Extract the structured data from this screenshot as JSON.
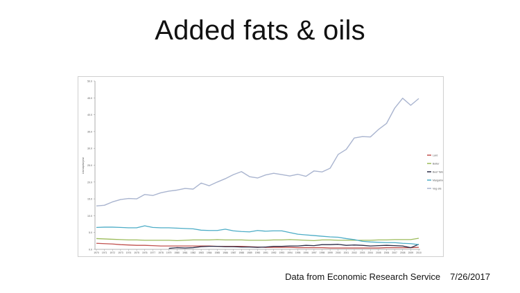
{
  "slide": {
    "title": "Added fats & oils",
    "source_note": "Data from Economic Research Service",
    "date": "7/26/2017"
  },
  "chart_data": {
    "type": "line",
    "title": "",
    "xlabel": "",
    "ylabel": "Lbs/capita/year",
    "ylim": [
      0,
      50
    ],
    "yticks": [
      "0.0",
      "5.0",
      "10.0",
      "15.0",
      "20.0",
      "25.0",
      "30.0",
      "35.0",
      "40.0",
      "45.0",
      "50.0"
    ],
    "x": [
      1970,
      1971,
      1972,
      1973,
      1974,
      1975,
      1976,
      1977,
      1978,
      1979,
      1980,
      1981,
      1982,
      1983,
      1984,
      1985,
      1986,
      1987,
      1988,
      1989,
      1990,
      1991,
      1992,
      1993,
      1994,
      1995,
      1996,
      1997,
      1998,
      1999,
      2000,
      2001,
      2002,
      2003,
      2004,
      2005,
      2006,
      2007,
      2008,
      2009,
      2010
    ],
    "grid": false,
    "legend_position": "right",
    "series": [
      {
        "name": "Lard",
        "color": "#c0504d",
        "values": [
          1.8,
          1.7,
          1.6,
          1.4,
          1.3,
          1.2,
          1.2,
          1.1,
          1.0,
          1.0,
          1.0,
          1.0,
          1.0,
          1.0,
          1.0,
          0.9,
          0.9,
          0.9,
          0.9,
          0.8,
          0.7,
          0.6,
          0.6,
          0.6,
          0.6,
          0.5,
          0.5,
          0.5,
          0.5,
          0.4,
          0.4,
          0.4,
          0.4,
          0.4,
          0.4,
          0.4,
          0.5,
          0.5,
          0.5,
          0.5,
          0.6
        ]
      },
      {
        "name": "Butter",
        "color": "#9bbb59",
        "values": [
          3.2,
          3.1,
          3.0,
          2.9,
          2.8,
          2.8,
          2.7,
          2.7,
          2.7,
          2.7,
          2.6,
          2.7,
          2.8,
          2.8,
          2.8,
          2.9,
          2.8,
          2.8,
          2.8,
          2.7,
          2.7,
          2.7,
          2.8,
          2.8,
          2.9,
          2.8,
          2.7,
          2.6,
          2.8,
          2.8,
          2.7,
          2.7,
          2.7,
          2.7,
          2.7,
          2.8,
          2.8,
          2.9,
          2.9,
          2.9,
          3.3
        ]
      },
      {
        "name": "Beef Tallow",
        "color": "#2b2b45",
        "values": [
          null,
          null,
          null,
          null,
          null,
          null,
          null,
          null,
          null,
          0.3,
          0.5,
          0.4,
          0.5,
          0.8,
          0.9,
          0.9,
          0.8,
          0.8,
          0.7,
          0.7,
          0.6,
          0.7,
          0.9,
          0.9,
          1.0,
          1.0,
          1.2,
          1.1,
          1.4,
          1.4,
          1.5,
          1.2,
          1.3,
          1.2,
          1.0,
          1.1,
          1.2,
          1.1,
          1.0,
          0.5,
          1.5
        ]
      },
      {
        "name": "Margarine",
        "color": "#4bacc6",
        "values": [
          6.5,
          6.6,
          6.6,
          6.5,
          6.4,
          6.4,
          7.0,
          6.5,
          6.4,
          6.4,
          6.3,
          6.2,
          6.1,
          5.7,
          5.6,
          5.6,
          6.0,
          5.5,
          5.3,
          5.2,
          5.6,
          5.4,
          5.5,
          5.5,
          5.0,
          4.5,
          4.3,
          4.1,
          3.9,
          3.7,
          3.6,
          3.2,
          2.9,
          2.4,
          2.2,
          2.1,
          2.0,
          2.0,
          1.8,
          1.7,
          1.4
        ]
      },
      {
        "name": "Veg oils",
        "color": "#a9b4cf",
        "values": [
          12.9,
          13.1,
          14.1,
          14.8,
          15.1,
          15.0,
          16.3,
          16.0,
          16.8,
          17.3,
          17.6,
          18.1,
          17.9,
          19.7,
          18.9,
          20.0,
          21.0,
          22.2,
          23.1,
          21.6,
          21.2,
          22.1,
          22.6,
          22.2,
          21.8,
          22.3,
          21.7,
          23.3,
          23.0,
          24.1,
          28.2,
          29.7,
          33.1,
          33.5,
          33.4,
          35.6,
          37.4,
          41.9,
          44.9,
          42.8,
          44.8
        ]
      }
    ]
  }
}
